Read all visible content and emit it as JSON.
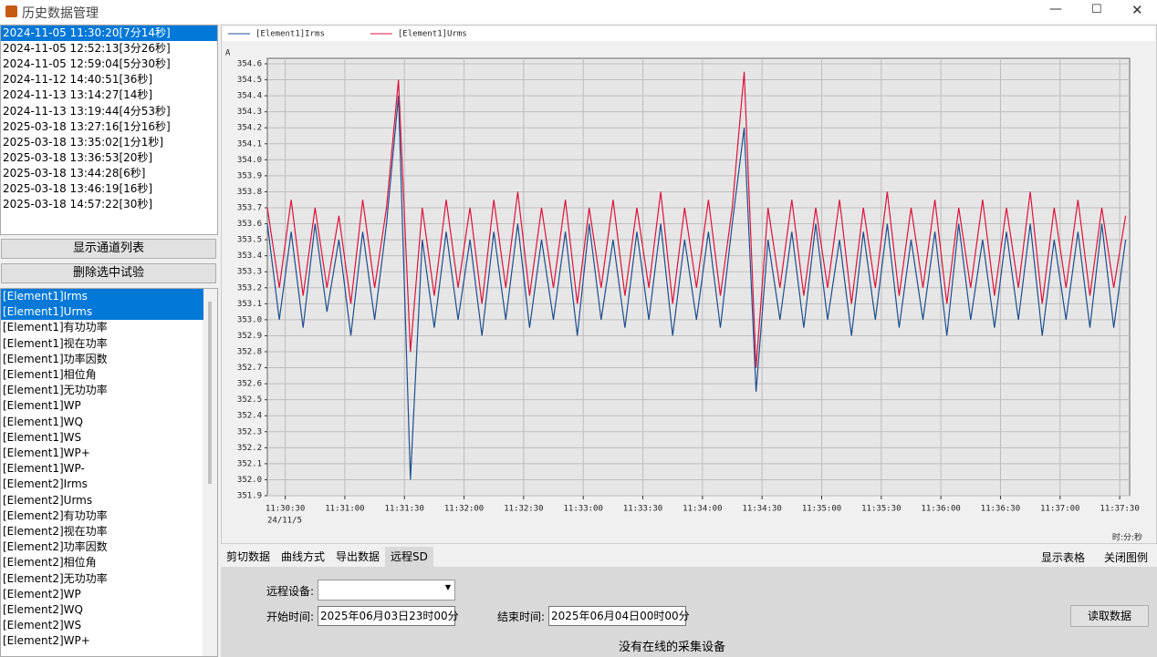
{
  "window": {
    "title": "历史数据管理"
  },
  "tests": [
    "2024-11-05 11:30:20[7分14秒]",
    "2024-11-05 12:52:13[3分26秒]",
    "2024-11-05 12:59:04[5分30秒]",
    "2024-11-12 14:40:51[36秒]",
    "2024-11-13 13:14:27[14秒]",
    "2024-11-13 13:19:44[4分53秒]",
    "2025-03-18 13:27:16[1分16秒]",
    "2025-03-18 13:35:02[1分1秒]",
    "2025-03-18 13:36:53[20秒]",
    "2025-03-18 13:44:28[6秒]",
    "2025-03-18 13:46:19[16秒]",
    "2025-03-18 14:57:22[30秒]"
  ],
  "buttons": [
    "显示通道列表",
    "删除选中试验"
  ],
  "channels": [
    "[Element1]Irms",
    "[Element1]Urms",
    "[Element1]有功功率",
    "[Element1]视在功率",
    "[Element1]功率因数",
    "[Element1]相位角",
    "[Element1]无功功率",
    "[Element1]WP",
    "[Element1]WQ",
    "[Element1]WS",
    "[Element1]WP+",
    "[Element1]WP-",
    "[Element2]Irms",
    "[Element2]Urms",
    "[Element2]有功功率",
    "[Element2]视在功率",
    "[Element2]功率因数",
    "[Element2]相位角",
    "[Element2]无功功率",
    "[Element2]WP",
    "[Element2]WQ",
    "[Element2]WS",
    "[Element2]WP+"
  ],
  "chart_data": {
    "type": "line",
    "y_label": "A",
    "x_label": "时:分:秒",
    "x_date": "24/11/5",
    "grid": true,
    "x": [
      "11:30:21",
      "11:30:27",
      "11:30:33",
      "11:30:39",
      "11:30:45",
      "11:30:51",
      "11:30:57",
      "11:31:03",
      "11:31:09",
      "11:31:15",
      "11:31:21",
      "11:31:27",
      "11:31:33",
      "11:31:39",
      "11:31:45",
      "11:31:51",
      "11:31:57",
      "11:32:03",
      "11:32:09",
      "11:32:15",
      "11:32:21",
      "11:32:27",
      "11:32:33",
      "11:32:39",
      "11:32:45",
      "11:32:51",
      "11:32:57",
      "11:33:03",
      "11:33:09",
      "11:33:15",
      "11:33:21",
      "11:33:27",
      "11:33:33",
      "11:33:39",
      "11:33:45",
      "11:33:51",
      "11:33:57",
      "11:34:03",
      "11:34:09",
      "11:34:15",
      "11:34:21",
      "11:34:27",
      "11:34:33",
      "11:34:39",
      "11:34:45",
      "11:34:51",
      "11:34:57",
      "11:35:03",
      "11:35:09",
      "11:35:15",
      "11:35:21",
      "11:35:27",
      "11:35:33",
      "11:35:39",
      "11:35:45",
      "11:35:51",
      "11:35:57",
      "11:36:03",
      "11:36:09",
      "11:36:15",
      "11:36:21",
      "11:36:27",
      "11:36:33",
      "11:36:39",
      "11:36:45",
      "11:36:51",
      "11:36:57",
      "11:37:03",
      "11:37:09",
      "11:37:15",
      "11:37:21",
      "11:37:27",
      "11:37:33"
    ],
    "series": [
      {
        "name": "[Element1]Irms",
        "color": "#1f4e8c",
        "values": [
          353.6,
          353.0,
          353.55,
          352.95,
          353.6,
          353.05,
          353.5,
          352.9,
          353.55,
          353.0,
          353.6,
          354.4,
          352.0,
          353.5,
          352.95,
          353.55,
          353.0,
          353.5,
          352.9,
          353.55,
          353.0,
          353.6,
          352.95,
          353.5,
          353.0,
          353.55,
          352.9,
          353.6,
          353.0,
          353.5,
          352.95,
          353.55,
          353.0,
          353.6,
          352.9,
          353.5,
          353.0,
          353.55,
          352.95,
          353.6,
          354.2,
          352.55,
          353.5,
          353.0,
          353.55,
          352.95,
          353.6,
          353.0,
          353.5,
          352.9,
          353.55,
          353.0,
          353.6,
          352.95,
          353.5,
          353.0,
          353.55,
          352.9,
          353.6,
          353.0,
          353.5,
          352.95,
          353.55,
          353.0,
          353.6,
          352.9,
          353.5,
          353.0,
          353.55,
          352.95,
          353.6,
          352.95,
          353.5
        ]
      },
      {
        "name": "[Element1]Urms",
        "color": "#dc143c",
        "values": [
          353.7,
          353.2,
          353.75,
          353.15,
          353.7,
          353.2,
          353.65,
          353.1,
          353.75,
          353.2,
          353.7,
          354.5,
          352.8,
          353.7,
          353.15,
          353.75,
          353.2,
          353.7,
          353.1,
          353.75,
          353.2,
          353.8,
          353.15,
          353.7,
          353.2,
          353.75,
          353.1,
          353.7,
          353.2,
          353.75,
          353.15,
          353.7,
          353.2,
          353.8,
          353.1,
          353.7,
          353.2,
          353.75,
          353.15,
          353.7,
          354.55,
          352.7,
          353.7,
          353.2,
          353.75,
          353.15,
          353.7,
          353.2,
          353.75,
          353.1,
          353.7,
          353.2,
          353.8,
          353.15,
          353.7,
          353.2,
          353.75,
          353.1,
          353.7,
          353.2,
          353.75,
          353.15,
          353.7,
          353.2,
          353.8,
          353.1,
          353.7,
          353.2,
          353.75,
          353.15,
          353.7,
          353.2,
          353.65
        ]
      }
    ],
    "xlim": [
      "11:30:21",
      "11:37:35"
    ],
    "xticks": [
      "11:30:30",
      "11:31:00",
      "11:31:30",
      "11:32:00",
      "11:32:30",
      "11:33:00",
      "11:33:30",
      "11:34:00",
      "11:34:30",
      "11:35:00",
      "11:35:30",
      "11:36:00",
      "11:36:30",
      "11:37:00",
      "11:37:30"
    ],
    "ylim": [
      351.9,
      354.6
    ],
    "yticks": [
      351.9,
      {
        "value": 352,
        "label": "352.0"
      },
      352.1,
      352.2,
      352.3,
      352.4,
      352.5,
      352.6,
      352.7,
      352.8,
      352.9,
      {
        "value": 353,
        "label": "353.0"
      },
      353.1,
      353.2,
      353.3,
      353.4,
      353.5,
      353.6,
      353.7,
      353.8,
      353.9,
      {
        "value": 354,
        "label": "354.0"
      },
      354.1,
      354.2,
      354.3,
      354.4,
      354.5,
      354.6
    ]
  },
  "tabs": [
    "剪切数据",
    "曲线方式",
    "导出数据",
    "远程SD"
  ],
  "tab_actions": [
    "显示表格",
    "关闭图例"
  ],
  "remote": {
    "device_label": "远程设备:",
    "start_label": "开始时间:",
    "start_value": "2025年06月03日23时00分",
    "end_label": "结束时间:",
    "end_value": "2025年06月04日00时00分",
    "read_button": "读取数据",
    "status": "没有在线的采集设备"
  }
}
